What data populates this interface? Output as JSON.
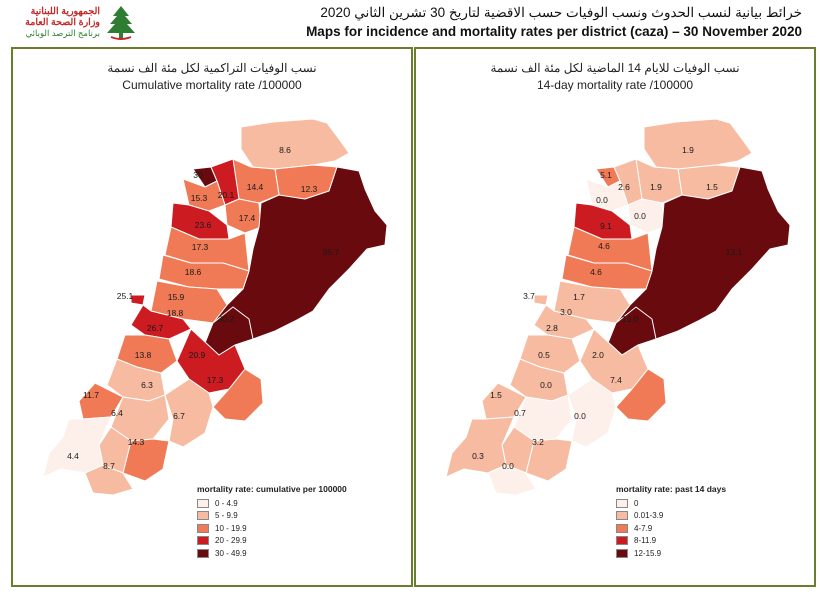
{
  "header": {
    "logo_line1": "الجمهورية اللبنانية",
    "logo_line2": "وزارة الصحة العامة",
    "logo_line3": "برنامج الترصد الوبائي",
    "title_ar": "خرائط بيانية لنسب الحدوث ونسب الوفيات حسب الاقضية لتاريخ 30 تشرين الثاني 2020",
    "title_en": "Maps for incidence and mortality rates per district (caza) – 30 November 2020"
  },
  "left_map": {
    "title_ar": "نسب الوفيات التراكمية لكل مئة الف نسمة",
    "title_en": "Cumulative mortality rate /100000",
    "legend_title": "mortality rate: cumulative per 100000",
    "legend": [
      {
        "label": "0 - 4.9",
        "color": "#fdf0ea"
      },
      {
        "label": "5 - 9.9",
        "color": "#f6bba0"
      },
      {
        "label": "10 - 19.9",
        "color": "#ef7a55"
      },
      {
        "label": "20 - 29.9",
        "color": "#cc1c22"
      },
      {
        "label": "30 - 49.9",
        "color": "#680a0e"
      }
    ],
    "labels": [
      "8.6",
      "30",
      "14.4",
      "12.3",
      "20.1",
      "15.3",
      "17.4",
      "23.6",
      "35.7",
      "17.3",
      "18.6",
      "25.1",
      "15.9",
      "18.8",
      "26.7",
      "30.2",
      "13.8",
      "20.9",
      "17.3",
      "6.3",
      "11.7",
      "6.4",
      "6.7",
      "14.3",
      "4.4",
      "8.7"
    ]
  },
  "right_map": {
    "title_ar": "نسب الوفيات للايام 14 الماضية لكل مئة الف نسمة",
    "title_en": "14-day mortality rate /100000",
    "legend_title": "mortality rate: past 14 days",
    "legend": [
      {
        "label": "0",
        "color": "#fdf0ea"
      },
      {
        "label": "0.01-3.9",
        "color": "#f6bba0"
      },
      {
        "label": "4-7.9",
        "color": "#ef7a55"
      },
      {
        "label": "8-11.9",
        "color": "#cc1c22"
      },
      {
        "label": "12-15.9",
        "color": "#680a0e"
      }
    ],
    "labels": [
      "1.9",
      "5.1",
      "2.6",
      "1.9",
      "1.5",
      "0.0",
      "0.0",
      "9.1",
      "13.1",
      "4.6",
      "4.6",
      "3.7",
      "1.7",
      "3.0",
      "13.0",
      "2.8",
      "0.5",
      "2.0",
      "0.0",
      "7.4",
      "1.5",
      "0.7",
      "0.0",
      "3.2",
      "0.3",
      "0.0"
    ]
  }
}
